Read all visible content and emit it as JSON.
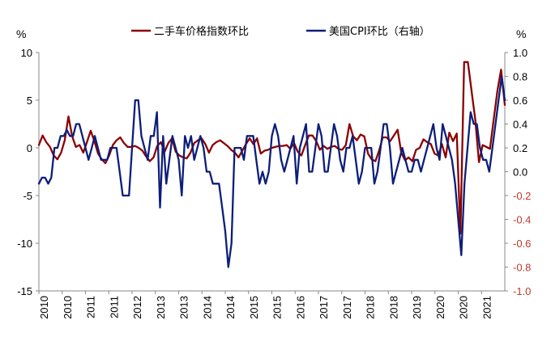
{
  "chart_data": {
    "type": "line",
    "left_unit": "%",
    "right_unit": "%",
    "left_ylim": [
      -15,
      10
    ],
    "left_ticks": [
      "10",
      "5",
      "0",
      "-5",
      "-10",
      "-15"
    ],
    "right_ylim": [
      -1.0,
      1.0
    ],
    "right_ticks": [
      "1.0",
      "0.8",
      "0.6",
      "0.4",
      "0.2",
      "0.0",
      "-0.2",
      "-0.4",
      "-0.6",
      "-0.8",
      "-1.0"
    ],
    "x_start_year": 2010,
    "x_labels": [
      "2010",
      "2010",
      "2011",
      "2011",
      "2012",
      "2013",
      "2013",
      "2014",
      "2014",
      "2015",
      "2015",
      "2016",
      "2017",
      "2017",
      "2018",
      "2018",
      "2019",
      "2020",
      "2020",
      "2021"
    ],
    "legend_position": "top",
    "series": [
      {
        "name": "二手车价格指数环比",
        "axis": "left",
        "color": "#8b0000",
        "values": [
          0.3,
          1.3,
          0.6,
          0.1,
          -0.8,
          -1.2,
          -0.5,
          0.8,
          3.3,
          1.2,
          0.1,
          0.3,
          -0.5,
          0.6,
          1.8,
          0.7,
          -0.6,
          -1.2,
          -1.6,
          -0.8,
          0.3,
          0.8,
          1.1,
          0.5,
          0.1,
          0.1,
          0.2,
          0.0,
          -0.3,
          -0.9,
          -1.4,
          -1.0,
          0.2,
          0.6,
          -0.4,
          0.5,
          1.0,
          -0.4,
          -0.8,
          -1.0,
          -1.1,
          -0.5,
          0.5,
          0.8,
          1.0,
          0.4,
          -0.5,
          0.3,
          0.6,
          0.8,
          0.5,
          0.2,
          -0.2,
          -0.5,
          -1.0,
          -0.3,
          0.4,
          1.0,
          0.4,
          1.0,
          -0.6,
          -0.3,
          -0.2,
          0.0,
          0.1,
          0.2,
          0.2,
          0.3,
          -0.1,
          0.5,
          -0.4,
          -0.8,
          0.3,
          1.3,
          1.3,
          0.7,
          -0.2,
          0.2,
          -0.1,
          0.1,
          0.2,
          -0.1,
          -0.2,
          0.3,
          2.5,
          1.2,
          0.8,
          1.4,
          1.2,
          -0.6,
          -1.2,
          -1.4,
          -0.3,
          1.1,
          1.1,
          0.7,
          1.3,
          1.9,
          -0.5,
          -1.3,
          -1.0,
          -1.4,
          -0.2,
          0.0,
          0.9,
          0.6,
          0.4,
          -0.6,
          -0.8,
          0.4,
          -1.0,
          1.6,
          0.7,
          1.5,
          -9.0,
          9.0,
          9.0,
          6.0,
          3.0,
          -1.5,
          0.3,
          0.1,
          -0.1,
          3.0,
          6.0,
          8.2,
          4.5
        ]
      },
      {
        "name": "美国CPI环比（右轴）",
        "axis": "right",
        "color": "#0c1e7a",
        "values": [
          -0.1,
          -0.05,
          -0.05,
          -0.1,
          -0.05,
          0.2,
          0.2,
          0.3,
          0.3,
          0.35,
          0.3,
          0.3,
          0.4,
          0.4,
          0.3,
          0.2,
          0.1,
          0.2,
          0.3,
          0.2,
          0.1,
          0.1,
          0.1,
          0.2,
          0.2,
          0.2,
          0.0,
          -0.2,
          -0.2,
          -0.2,
          0.2,
          0.6,
          0.6,
          0.3,
          0.2,
          0.1,
          0.3,
          0.3,
          0.5,
          -0.3,
          0.3,
          -0.1,
          0.1,
          0.3,
          0.2,
          0.1,
          -0.2,
          0.3,
          0.2,
          0.3,
          0.1,
          0.2,
          0.3,
          0.2,
          0.0,
          0.0,
          -0.1,
          -0.1,
          -0.1,
          -0.3,
          -0.5,
          -0.8,
          -0.6,
          0.2,
          0.2,
          0.2,
          0.1,
          0.3,
          0.3,
          0.3,
          0.1,
          -0.1,
          0.0,
          -0.1,
          0.0,
          0.3,
          0.4,
          0.3,
          0.1,
          0.0,
          0.1,
          0.2,
          0.3,
          -0.1,
          0.2,
          0.3,
          0.4,
          0.0,
          0.0,
          0.2,
          0.4,
          0.3,
          0.0,
          0.0,
          0.2,
          0.4,
          0.3,
          0.1,
          0.0,
          0.2,
          0.2,
          0.3,
          0.1,
          -0.1,
          0.0,
          0.2,
          0.2,
          0.2,
          -0.1,
          0.0,
          0.2,
          0.4,
          0.4,
          0.2,
          -0.1,
          0.0,
          0.1,
          0.2,
          0.1,
          0.0,
          0.0,
          0.1,
          0.1,
          0.0,
          0.1,
          0.2,
          0.3,
          0.4,
          0.2,
          0.1,
          0.4,
          0.3,
          0.2,
          0.1,
          -0.1,
          -0.4,
          -0.7,
          -0.1,
          0.2,
          0.5,
          0.4,
          0.4,
          0.2,
          0.1,
          0.1,
          0.0,
          0.2,
          0.4,
          0.6,
          0.8,
          0.6
        ]
      }
    ]
  }
}
